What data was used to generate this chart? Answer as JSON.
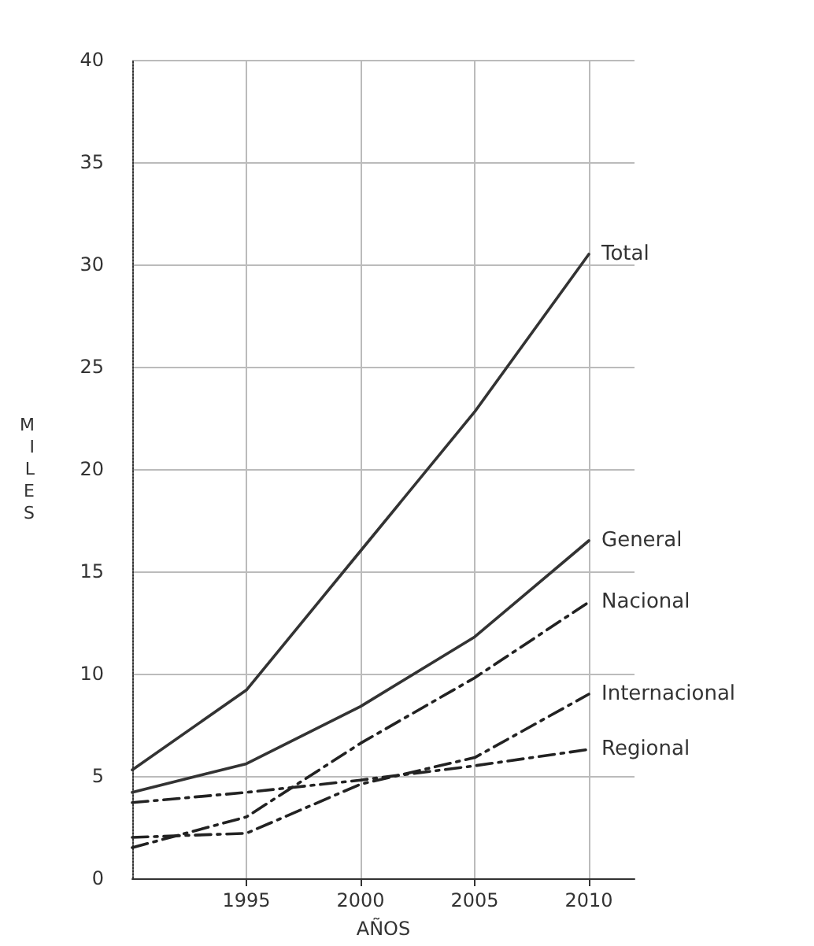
{
  "chart_data": {
    "type": "line",
    "xlabel": "AÑOS",
    "ylabel": "MILES",
    "x": [
      1990,
      1995,
      2000,
      2005,
      2010
    ],
    "series": [
      {
        "name": "Total",
        "color": "#333333",
        "line_style": "solid",
        "values": [
          5.3,
          9.2,
          16,
          22.8,
          30.5
        ]
      },
      {
        "name": "General",
        "color": "#333333",
        "line_style": "solid",
        "values": [
          4.2,
          5.6,
          8.4,
          11.8,
          16.5
        ]
      },
      {
        "name": "Nacional",
        "color": "#222222",
        "line_style": "dashed",
        "values": [
          1.5,
          3.0,
          6.6,
          9.8,
          13.5
        ]
      },
      {
        "name": "Internacional",
        "color": "#222222",
        "line_style": "dashed",
        "values": [
          2.0,
          2.2,
          4.6,
          5.9,
          9.0
        ]
      },
      {
        "name": "Regional",
        "color": "#222222",
        "line_style": "dashed",
        "values": [
          3.7,
          4.2,
          4.8,
          5.5,
          6.3
        ]
      }
    ],
    "xlim": [
      1990,
      2012
    ],
    "xticks": [
      1995,
      2000,
      2005,
      2010
    ],
    "ylim": [
      0,
      40
    ],
    "yticks": [
      0,
      5,
      10,
      15,
      20,
      25,
      30,
      35,
      40
    ],
    "grid": true,
    "legend": false,
    "marker": "none"
  }
}
